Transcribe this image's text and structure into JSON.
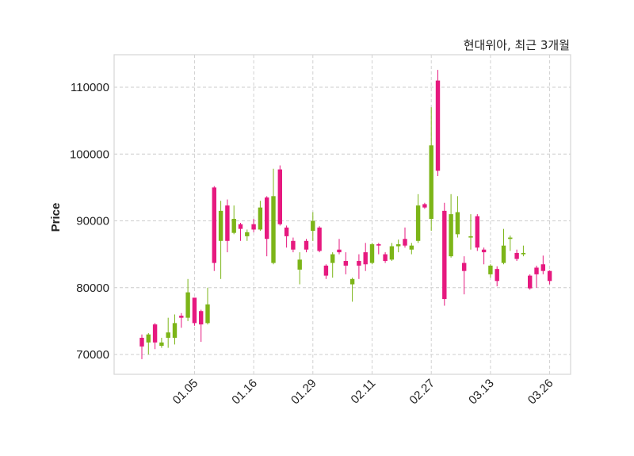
{
  "chart_data": {
    "type": "candlestick",
    "title": "현대위아, 최근 3개월",
    "ylabel": "Price",
    "xlabel": "",
    "ylim": [
      67000,
      115000
    ],
    "y_ticks": [
      70000,
      80000,
      90000,
      100000,
      110000
    ],
    "x_tick_labels": [
      {
        "label": "01.05",
        "index": 8
      },
      {
        "label": "01.16",
        "index": 17
      },
      {
        "label": "01.29",
        "index": 26
      },
      {
        "label": "02.11",
        "index": 35
      },
      {
        "label": "02.27",
        "index": 44
      },
      {
        "label": "03.13",
        "index": 53
      },
      {
        "label": "03.26",
        "index": 62
      }
    ],
    "grid": true,
    "colors": {
      "up": "#7cb518",
      "down": "#e6197f",
      "grid": "#cccccc",
      "frame": "#d6d6d6"
    },
    "candles": [
      {
        "i": 0,
        "o": 72500,
        "h": 73000,
        "l": 69300,
        "c": 71200
      },
      {
        "i": 1,
        "o": 71800,
        "h": 73200,
        "l": 70000,
        "c": 73000
      },
      {
        "i": 2,
        "o": 74500,
        "h": 74700,
        "l": 70800,
        "c": 71800
      },
      {
        "i": 3,
        "o": 71300,
        "h": 72500,
        "l": 71000,
        "c": 71800
      },
      {
        "i": 4,
        "o": 72500,
        "h": 75500,
        "l": 71000,
        "c": 73300
      },
      {
        "i": 5,
        "o": 72500,
        "h": 76000,
        "l": 71500,
        "c": 74700
      },
      {
        "i": 6,
        "o": 75800,
        "h": 76200,
        "l": 74000,
        "c": 75500
      },
      {
        "i": 7,
        "o": 75500,
        "h": 81300,
        "l": 75000,
        "c": 79300
      },
      {
        "i": 8,
        "o": 78500,
        "h": 78500,
        "l": 74300,
        "c": 74700
      },
      {
        "i": 9,
        "o": 76500,
        "h": 76700,
        "l": 71900,
        "c": 74500
      },
      {
        "i": 10,
        "o": 74700,
        "h": 80000,
        "l": 74500,
        "c": 77500
      },
      {
        "i": 11,
        "o": 95000,
        "h": 95200,
        "l": 82500,
        "c": 83700
      },
      {
        "i": 12,
        "o": 87000,
        "h": 93000,
        "l": 81300,
        "c": 91500
      },
      {
        "i": 13,
        "o": 92300,
        "h": 93200,
        "l": 85300,
        "c": 87000
      },
      {
        "i": 14,
        "o": 88200,
        "h": 92300,
        "l": 88000,
        "c": 90300
      },
      {
        "i": 15,
        "o": 89500,
        "h": 89700,
        "l": 87000,
        "c": 88800
      },
      {
        "i": 16,
        "o": 87700,
        "h": 88700,
        "l": 87000,
        "c": 88300
      },
      {
        "i": 17,
        "o": 89500,
        "h": 90300,
        "l": 88300,
        "c": 88700
      },
      {
        "i": 18,
        "o": 88700,
        "h": 93000,
        "l": 88500,
        "c": 92000
      },
      {
        "i": 19,
        "o": 93500,
        "h": 93700,
        "l": 84700,
        "c": 87300
      },
      {
        "i": 20,
        "o": 83700,
        "h": 97800,
        "l": 83500,
        "c": 93700
      },
      {
        "i": 21,
        "o": 97700,
        "h": 98300,
        "l": 89300,
        "c": 89500
      },
      {
        "i": 22,
        "o": 89000,
        "h": 89300,
        "l": 86000,
        "c": 87700
      },
      {
        "i": 23,
        "o": 87000,
        "h": 87500,
        "l": 85300,
        "c": 85700
      },
      {
        "i": 24,
        "o": 82700,
        "h": 85300,
        "l": 80500,
        "c": 84200
      },
      {
        "i": 25,
        "o": 87000,
        "h": 87300,
        "l": 85300,
        "c": 85700
      },
      {
        "i": 26,
        "o": 88500,
        "h": 91300,
        "l": 87000,
        "c": 90000
      },
      {
        "i": 27,
        "o": 89000,
        "h": 89200,
        "l": 85300,
        "c": 85500
      },
      {
        "i": 28,
        "o": 83300,
        "h": 83500,
        "l": 81300,
        "c": 81800
      },
      {
        "i": 29,
        "o": 83700,
        "h": 85300,
        "l": 81500,
        "c": 85000
      },
      {
        "i": 30,
        "o": 85700,
        "h": 87300,
        "l": 85000,
        "c": 85300
      },
      {
        "i": 31,
        "o": 84000,
        "h": 85300,
        "l": 82000,
        "c": 83300
      },
      {
        "i": 32,
        "o": 80500,
        "h": 81500,
        "l": 77900,
        "c": 81300
      },
      {
        "i": 33,
        "o": 84000,
        "h": 85000,
        "l": 81300,
        "c": 83300
      },
      {
        "i": 34,
        "o": 85300,
        "h": 86700,
        "l": 82500,
        "c": 83500
      },
      {
        "i": 35,
        "o": 83700,
        "h": 86700,
        "l": 83500,
        "c": 86500
      },
      {
        "i": 36,
        "o": 86500,
        "h": 86700,
        "l": 85000,
        "c": 86300
      },
      {
        "i": 37,
        "o": 85000,
        "h": 85300,
        "l": 83700,
        "c": 84000
      },
      {
        "i": 38,
        "o": 84200,
        "h": 86700,
        "l": 84000,
        "c": 86200
      },
      {
        "i": 39,
        "o": 86200,
        "h": 87200,
        "l": 85300,
        "c": 86500
      },
      {
        "i": 40,
        "o": 87300,
        "h": 89000,
        "l": 86000,
        "c": 86300
      },
      {
        "i": 41,
        "o": 85700,
        "h": 86700,
        "l": 85000,
        "c": 86300
      },
      {
        "i": 42,
        "o": 87000,
        "h": 94000,
        "l": 86700,
        "c": 92300
      },
      {
        "i": 43,
        "o": 92500,
        "h": 92700,
        "l": 91800,
        "c": 92000
      },
      {
        "i": 44,
        "o": 90300,
        "h": 107000,
        "l": 88500,
        "c": 101300
      },
      {
        "i": 45,
        "o": 111000,
        "h": 112600,
        "l": 96700,
        "c": 97500
      },
      {
        "i": 46,
        "o": 91500,
        "h": 92700,
        "l": 77300,
        "c": 78300
      },
      {
        "i": 47,
        "o": 84700,
        "h": 94000,
        "l": 84500,
        "c": 91000
      },
      {
        "i": 48,
        "o": 88000,
        "h": 93700,
        "l": 87500,
        "c": 91300
      },
      {
        "i": 49,
        "o": 83700,
        "h": 84700,
        "l": 79000,
        "c": 82500
      },
      {
        "i": 50,
        "o": 87500,
        "h": 91000,
        "l": 85700,
        "c": 87700
      },
      {
        "i": 51,
        "o": 90700,
        "h": 91000,
        "l": 85500,
        "c": 86000
      },
      {
        "i": 52,
        "o": 85700,
        "h": 86000,
        "l": 83500,
        "c": 85300
      },
      {
        "i": 53,
        "o": 82000,
        "h": 83500,
        "l": 81500,
        "c": 83300
      },
      {
        "i": 54,
        "o": 82800,
        "h": 83200,
        "l": 80200,
        "c": 81000
      },
      {
        "i": 55,
        "o": 83700,
        "h": 88800,
        "l": 83500,
        "c": 86300
      },
      {
        "i": 56,
        "o": 87300,
        "h": 87800,
        "l": 85500,
        "c": 87500
      },
      {
        "i": 57,
        "o": 85200,
        "h": 85700,
        "l": 84000,
        "c": 84300
      },
      {
        "i": 58,
        "o": 85000,
        "h": 86300,
        "l": 84700,
        "c": 85200
      },
      {
        "i": 59,
        "o": 81800,
        "h": 82000,
        "l": 79700,
        "c": 79900
      },
      {
        "i": 60,
        "o": 83000,
        "h": 83300,
        "l": 80000,
        "c": 82000
      },
      {
        "i": 61,
        "o": 83500,
        "h": 84800,
        "l": 82000,
        "c": 82500
      },
      {
        "i": 62,
        "o": 82500,
        "h": 82600,
        "l": 80500,
        "c": 81000
      }
    ]
  }
}
